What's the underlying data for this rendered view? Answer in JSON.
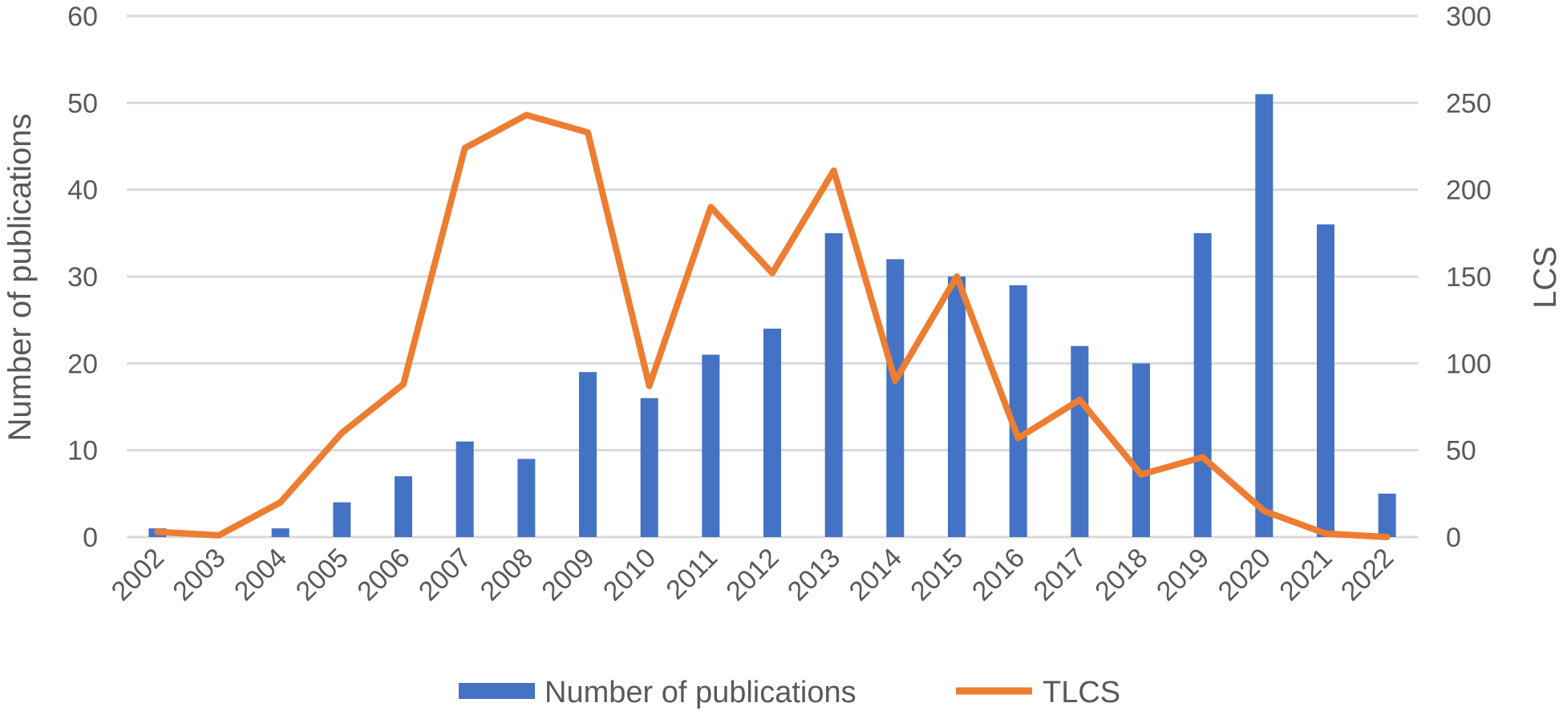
{
  "chart_data": {
    "type": "bar",
    "categories": [
      "2002",
      "2003",
      "2004",
      "2005",
      "2006",
      "2007",
      "2008",
      "2009",
      "2010",
      "2011",
      "2012",
      "2013",
      "2014",
      "2015",
      "2016",
      "2017",
      "2018",
      "2019",
      "2020",
      "2021",
      "2022"
    ],
    "series": [
      {
        "name": "Number of publications",
        "type": "bar",
        "axis": "left",
        "color": "#4472C4",
        "values": [
          1,
          0,
          1,
          4,
          7,
          11,
          9,
          19,
          16,
          21,
          24,
          35,
          32,
          30,
          29,
          22,
          20,
          35,
          51,
          36,
          5
        ]
      },
      {
        "name": "TLCS",
        "type": "line",
        "axis": "right",
        "color": "#ED7D31",
        "values": [
          3,
          1,
          20,
          60,
          88,
          224,
          243,
          233,
          87,
          190,
          152,
          211,
          90,
          150,
          57,
          79,
          36,
          46,
          15,
          2,
          0
        ]
      }
    ],
    "ylabel": "Number of publications",
    "y2label": "LCS",
    "ylim": [
      0,
      60
    ],
    "y2lim": [
      0,
      300
    ],
    "yticks": [
      "0",
      "10",
      "20",
      "30",
      "40",
      "50",
      "60"
    ],
    "y2ticks": [
      "0",
      "50",
      "100",
      "150",
      "200",
      "250",
      "300"
    ],
    "grid": true,
    "legend_position": "bottom"
  }
}
